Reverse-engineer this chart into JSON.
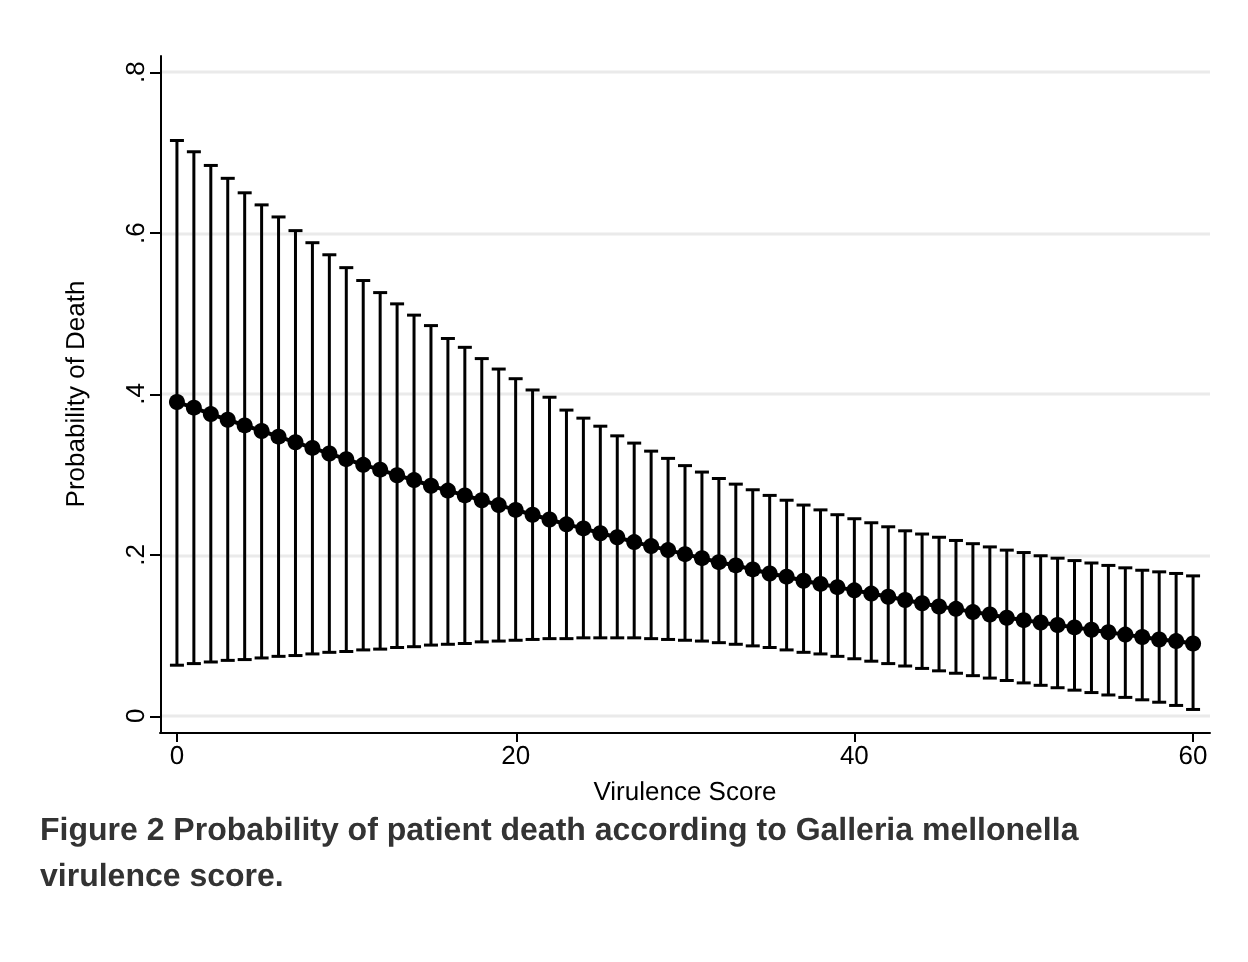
{
  "chart_data": {
    "type": "line",
    "xlabel": "Virulence Score",
    "ylabel": "Probability of Death",
    "annotations": [
      "Figure 2 Probability of patient death according to Galleria mellonella virulence score."
    ],
    "x": [
      0,
      1,
      2,
      3,
      4,
      5,
      6,
      7,
      8,
      9,
      10,
      11,
      12,
      13,
      14,
      15,
      16,
      17,
      18,
      19,
      20,
      21,
      22,
      23,
      24,
      25,
      26,
      27,
      28,
      29,
      30,
      31,
      32,
      33,
      34,
      35,
      36,
      37,
      38,
      39,
      40,
      41,
      42,
      43,
      44,
      45,
      46,
      47,
      48,
      49,
      50,
      51,
      52,
      53,
      54,
      55,
      56,
      57,
      58,
      59,
      60
    ],
    "series": [
      {
        "color": "#000000",
        "values": [
          0.39,
          0.383,
          0.375,
          0.368,
          0.361,
          0.354,
          0.347,
          0.34,
          0.333,
          0.326,
          0.319,
          0.312,
          0.306,
          0.299,
          0.293,
          0.286,
          0.28,
          0.274,
          0.268,
          0.262,
          0.256,
          0.25,
          0.244,
          0.238,
          0.233,
          0.227,
          0.222,
          0.216,
          0.211,
          0.206,
          0.201,
          0.196,
          0.191,
          0.187,
          0.182,
          0.177,
          0.173,
          0.168,
          0.164,
          0.16,
          0.156,
          0.152,
          0.148,
          0.144,
          0.14,
          0.136,
          0.133,
          0.129,
          0.126,
          0.122,
          0.119,
          0.116,
          0.113,
          0.11,
          0.107,
          0.104,
          0.101,
          0.098,
          0.095,
          0.093,
          0.09
        ],
        "errors": [
          [
            0.063,
            0.715
          ],
          [
            0.065,
            0.701
          ],
          [
            0.067,
            0.684
          ],
          [
            0.069,
            0.668
          ],
          [
            0.07,
            0.65
          ],
          [
            0.072,
            0.635
          ],
          [
            0.074,
            0.62
          ],
          [
            0.075,
            0.603
          ],
          [
            0.077,
            0.588
          ],
          [
            0.079,
            0.573
          ],
          [
            0.08,
            0.557
          ],
          [
            0.082,
            0.541
          ],
          [
            0.083,
            0.526
          ],
          [
            0.085,
            0.512
          ],
          [
            0.086,
            0.498
          ],
          [
            0.088,
            0.485
          ],
          [
            0.089,
            0.469
          ],
          [
            0.09,
            0.458
          ],
          [
            0.092,
            0.444
          ],
          [
            0.093,
            0.431
          ],
          [
            0.094,
            0.419
          ],
          [
            0.095,
            0.405
          ],
          [
            0.096,
            0.396
          ],
          [
            0.096,
            0.38
          ],
          [
            0.097,
            0.37
          ],
          [
            0.097,
            0.36
          ],
          [
            0.097,
            0.348
          ],
          [
            0.097,
            0.339
          ],
          [
            0.096,
            0.329
          ],
          [
            0.095,
            0.32
          ],
          [
            0.094,
            0.311
          ],
          [
            0.093,
            0.303
          ],
          [
            0.091,
            0.295
          ],
          [
            0.089,
            0.288
          ],
          [
            0.087,
            0.281
          ],
          [
            0.085,
            0.274
          ],
          [
            0.082,
            0.268
          ],
          [
            0.079,
            0.262
          ],
          [
            0.077,
            0.256
          ],
          [
            0.074,
            0.25
          ],
          [
            0.071,
            0.245
          ],
          [
            0.068,
            0.24
          ],
          [
            0.065,
            0.235
          ],
          [
            0.062,
            0.23
          ],
          [
            0.059,
            0.226
          ],
          [
            0.056,
            0.222
          ],
          [
            0.053,
            0.218
          ],
          [
            0.05,
            0.214
          ],
          [
            0.047,
            0.21
          ],
          [
            0.044,
            0.206
          ],
          [
            0.041,
            0.203
          ],
          [
            0.038,
            0.199
          ],
          [
            0.035,
            0.196
          ],
          [
            0.032,
            0.193
          ],
          [
            0.029,
            0.19
          ],
          [
            0.026,
            0.187
          ],
          [
            0.023,
            0.184
          ],
          [
            0.02,
            0.181
          ],
          [
            0.017,
            0.179
          ],
          [
            0.013,
            0.177
          ],
          [
            0.008,
            0.174
          ]
        ]
      }
    ],
    "xlim": [
      -1,
      61
    ],
    "xticks": [
      0,
      20,
      40,
      60
    ],
    "ylim": [
      -0.02,
      0.82
    ],
    "yticks": [
      0,
      {
        "value": 0.2,
        "label": ".2"
      },
      {
        "value": 0.4,
        "label": ".4"
      },
      {
        "value": 0.6,
        "label": ".6"
      },
      {
        "value": 0.8,
        "label": ".8"
      }
    ],
    "grid": "y",
    "marker": "circle",
    "line_style": "solid"
  }
}
